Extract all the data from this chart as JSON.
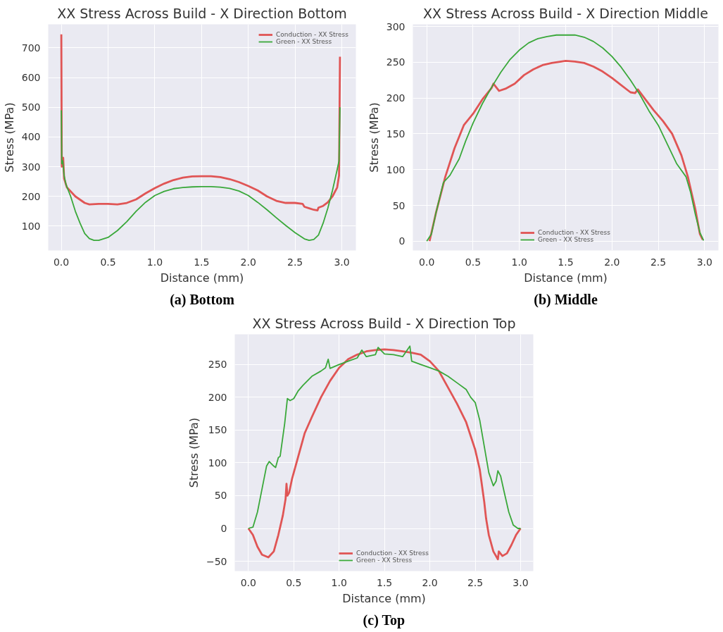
{
  "chart_data": [
    {
      "type": "line",
      "title": "XX Stress Across Build - X Direction Bottom",
      "xlabel": "Distance (mm)",
      "ylabel": "Stress (MPa)",
      "annotations": [
        "(a) Bottom"
      ],
      "xlim": [
        -0.14,
        3.15
      ],
      "ylim": [
        18,
        779
      ],
      "xticks": [
        {
          "value": 0,
          "label": "0.0"
        },
        0.5,
        {
          "value": 1,
          "label": "1.0"
        },
        1.5,
        {
          "value": 2,
          "label": "2.0"
        },
        2.5,
        {
          "value": 3,
          "label": "3.0"
        }
      ],
      "yticks": [
        100,
        200,
        300,
        400,
        500,
        600,
        700
      ],
      "grid": true,
      "legend": "top right",
      "line_style": "solid",
      "series": [
        {
          "name": "Conduction - XX Stress",
          "color": "#e05555",
          "x": [
            0.0,
            0.005,
            0.02,
            0.03,
            0.06,
            0.15,
            0.25,
            0.3,
            0.4,
            0.5,
            0.6,
            0.7,
            0.8,
            0.9,
            1.0,
            1.1,
            1.2,
            1.3,
            1.4,
            1.5,
            1.6,
            1.7,
            1.8,
            1.9,
            2.0,
            2.1,
            2.2,
            2.3,
            2.4,
            2.5,
            2.58,
            2.6,
            2.65,
            2.7,
            2.74,
            2.75,
            2.8,
            2.85,
            2.9,
            2.95,
            2.97,
            2.98
          ],
          "values": [
            745,
            300,
            330,
            260,
            230,
            200,
            178,
            173,
            175,
            175,
            173,
            178,
            190,
            210,
            228,
            243,
            255,
            263,
            267,
            268,
            268,
            265,
            258,
            248,
            235,
            220,
            200,
            185,
            178,
            178,
            175,
            165,
            160,
            155,
            153,
            162,
            168,
            180,
            200,
            230,
            270,
            670
          ]
        },
        {
          "name": "Green - XX Stress",
          "color": "#3aa83a",
          "x": [
            0.0,
            0.005,
            0.015,
            0.03,
            0.05,
            0.1,
            0.15,
            0.2,
            0.25,
            0.3,
            0.35,
            0.4,
            0.5,
            0.6,
            0.7,
            0.8,
            0.9,
            1.0,
            1.1,
            1.2,
            1.3,
            1.4,
            1.5,
            1.6,
            1.7,
            1.8,
            1.9,
            2.0,
            2.1,
            2.2,
            2.3,
            2.4,
            2.5,
            2.6,
            2.65,
            2.7,
            2.75,
            2.8,
            2.85,
            2.9,
            2.95,
            2.97,
            2.98
          ],
          "values": [
            490,
            310,
            320,
            270,
            240,
            200,
            150,
            110,
            75,
            58,
            52,
            52,
            62,
            85,
            115,
            150,
            180,
            203,
            217,
            226,
            230,
            232,
            233,
            233,
            231,
            227,
            218,
            203,
            180,
            155,
            128,
            102,
            78,
            57,
            52,
            55,
            70,
            110,
            160,
            220,
            290,
            320,
            500
          ]
        }
      ]
    },
    {
      "type": "line",
      "title": "XX Stress Across Build - X Direction Middle",
      "xlabel": "Distance (mm)",
      "ylabel": "Stress (MPa)",
      "annotations": [
        "(b) Middle"
      ],
      "xlim": [
        -0.15,
        3.15
      ],
      "ylim": [
        -13,
        303
      ],
      "xticks": [
        {
          "value": 0,
          "label": "0.0"
        },
        0.5,
        {
          "value": 1,
          "label": "1.0"
        },
        1.5,
        {
          "value": 2,
          "label": "2.0"
        },
        2.5,
        {
          "value": 3,
          "label": "3.0"
        }
      ],
      "yticks": [
        0,
        50,
        100,
        150,
        200,
        250,
        300
      ],
      "grid": true,
      "legend": "bottom",
      "line_style": "solid",
      "series": [
        {
          "name": "Conduction - XX Stress",
          "color": "#e05555",
          "x": [
            0.03,
            0.1,
            0.2,
            0.3,
            0.4,
            0.5,
            0.6,
            0.7,
            0.72,
            0.78,
            0.85,
            0.95,
            1.05,
            1.15,
            1.25,
            1.35,
            1.5,
            1.6,
            1.7,
            1.8,
            1.9,
            2.0,
            2.1,
            2.2,
            2.25,
            2.28,
            2.35,
            2.45,
            2.55,
            2.65,
            2.75,
            2.82,
            2.9,
            2.95,
            2.98
          ],
          "values": [
            0,
            40,
            90,
            130,
            162,
            178,
            198,
            214,
            220,
            210,
            213,
            220,
            232,
            240,
            246,
            249,
            252,
            251,
            249,
            244,
            237,
            228,
            218,
            208,
            207,
            212,
            200,
            183,
            168,
            150,
            120,
            90,
            45,
            10,
            2
          ]
        },
        {
          "name": "Green - XX Stress",
          "color": "#3aa83a",
          "x": [
            0.0,
            0.05,
            0.1,
            0.18,
            0.25,
            0.35,
            0.42,
            0.5,
            0.6,
            0.7,
            0.8,
            0.9,
            1.0,
            1.1,
            1.2,
            1.3,
            1.4,
            1.5,
            1.6,
            1.7,
            1.8,
            1.9,
            2.0,
            2.1,
            2.2,
            2.3,
            2.4,
            2.5,
            2.6,
            2.7,
            2.8,
            2.85,
            2.9,
            2.95,
            2.99
          ],
          "values": [
            0,
            10,
            40,
            82,
            92,
            115,
            140,
            165,
            192,
            215,
            236,
            254,
            267,
            277,
            283,
            286,
            288,
            288,
            288,
            285,
            279,
            270,
            258,
            243,
            225,
            205,
            182,
            162,
            135,
            108,
            90,
            68,
            38,
            12,
            1
          ]
        }
      ]
    },
    {
      "type": "line",
      "title": "XX Stress Across Build - X Direction Top",
      "xlabel": "Distance (mm)",
      "ylabel": "Stress (MPa)",
      "annotations": [
        "(c) Top"
      ],
      "xlim": [
        -0.15,
        3.14
      ],
      "ylim": [
        -65,
        296
      ],
      "xticks": [
        {
          "value": 0,
          "label": "0.0"
        },
        0.5,
        {
          "value": 1,
          "label": "1.0"
        },
        1.5,
        {
          "value": 2,
          "label": "2.0"
        },
        2.5,
        {
          "value": 3,
          "label": "3.0"
        }
      ],
      "yticks": [
        -50,
        0,
        50,
        100,
        150,
        200,
        250
      ],
      "grid": true,
      "legend": "bottom",
      "line_style": "solid",
      "series": [
        {
          "name": "Conduction - XX Stress",
          "color": "#e05555",
          "x": [
            0.0,
            0.05,
            0.1,
            0.15,
            0.22,
            0.28,
            0.33,
            0.38,
            0.41,
            0.42,
            0.43,
            0.45,
            0.48,
            0.55,
            0.62,
            0.7,
            0.8,
            0.9,
            1.0,
            1.1,
            1.2,
            1.3,
            1.4,
            1.5,
            1.6,
            1.7,
            1.8,
            1.9,
            2.0,
            2.1,
            2.2,
            2.3,
            2.4,
            2.5,
            2.55,
            2.6,
            2.62,
            2.65,
            2.7,
            2.75,
            2.76,
            2.8,
            2.85,
            2.9,
            2.95,
            3.0
          ],
          "values": [
            0,
            -10,
            -28,
            -40,
            -44,
            -35,
            -10,
            20,
            45,
            68,
            50,
            55,
            75,
            110,
            145,
            170,
            200,
            225,
            245,
            258,
            265,
            270,
            272,
            273,
            272,
            270,
            268,
            265,
            255,
            240,
            215,
            190,
            162,
            120,
            90,
            40,
            15,
            -10,
            -35,
            -47,
            -35,
            -42,
            -38,
            -25,
            -10,
            0
          ]
        },
        {
          "name": "Green - XX Stress",
          "color": "#3aa83a",
          "x": [
            0.0,
            0.05,
            0.1,
            0.15,
            0.2,
            0.23,
            0.28,
            0.3,
            0.33,
            0.35,
            0.4,
            0.43,
            0.46,
            0.5,
            0.55,
            0.6,
            0.65,
            0.7,
            0.8,
            0.85,
            0.88,
            0.9,
            1.0,
            1.1,
            1.2,
            1.25,
            1.3,
            1.4,
            1.43,
            1.5,
            1.6,
            1.7,
            1.78,
            1.8,
            1.9,
            2.0,
            2.1,
            2.2,
            2.3,
            2.4,
            2.45,
            2.5,
            2.55,
            2.6,
            2.65,
            2.7,
            2.73,
            2.75,
            2.78,
            2.82,
            2.87,
            2.92,
            2.97,
            3.0
          ],
          "values": [
            0,
            2,
            25,
            60,
            95,
            102,
            95,
            93,
            108,
            110,
            160,
            198,
            195,
            198,
            210,
            218,
            225,
            232,
            240,
            245,
            258,
            244,
            250,
            255,
            260,
            272,
            262,
            265,
            276,
            266,
            265,
            262,
            278,
            255,
            250,
            245,
            240,
            232,
            222,
            212,
            200,
            192,
            165,
            125,
            85,
            65,
            72,
            88,
            80,
            55,
            25,
            5,
            0,
            0
          ]
        }
      ]
    }
  ]
}
